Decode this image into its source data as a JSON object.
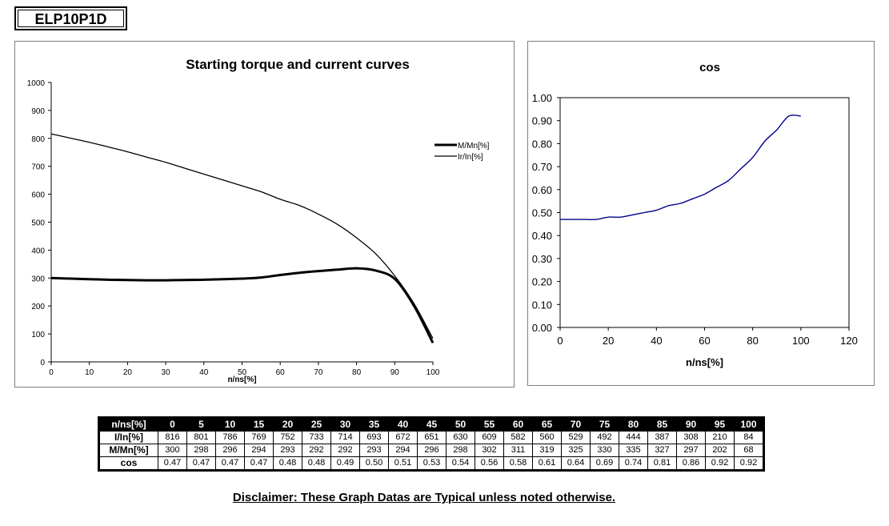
{
  "model": "ELP10P1D",
  "chart_data": [
    {
      "type": "line",
      "title": "Starting torque and current curves",
      "xlabel": "n/ns[%]",
      "ylabel": "",
      "xlim": [
        0,
        100
      ],
      "ylim": [
        0,
        1000
      ],
      "xticks": [
        0,
        10,
        20,
        30,
        40,
        50,
        60,
        70,
        80,
        90,
        100
      ],
      "yticks": [
        0,
        100,
        200,
        300,
        400,
        500,
        600,
        700,
        800,
        900,
        1000
      ],
      "legend_position": "right",
      "x": [
        0,
        5,
        10,
        15,
        20,
        25,
        30,
        35,
        40,
        45,
        50,
        55,
        60,
        65,
        70,
        75,
        80,
        85,
        90,
        95,
        100
      ],
      "series": [
        {
          "name": "M/Mn[%]",
          "color": "#000000",
          "width": "thick",
          "values": [
            300,
            298,
            296,
            294,
            293,
            292,
            292,
            293,
            294,
            296,
            298,
            302,
            311,
            319,
            325,
            330,
            335,
            327,
            297,
            202,
            68
          ]
        },
        {
          "name": "Ir/In[%]",
          "color": "#000000",
          "width": "thin",
          "values": [
            816,
            801,
            786,
            769,
            752,
            733,
            714,
            693,
            672,
            651,
            630,
            609,
            582,
            560,
            529,
            492,
            444,
            387,
            308,
            210,
            84
          ]
        }
      ]
    },
    {
      "type": "line",
      "title": "cos",
      "xlabel": "n/ns[%]",
      "ylabel": "",
      "xlim": [
        0,
        120
      ],
      "ylim": [
        0,
        1
      ],
      "xticks": [
        0,
        20,
        40,
        60,
        80,
        100,
        120
      ],
      "yticks": [
        "0.00",
        "0.10",
        "0.20",
        "0.30",
        "0.40",
        "0.50",
        "0.60",
        "0.70",
        "0.80",
        "0.90",
        "1.00"
      ],
      "x": [
        0,
        5,
        10,
        15,
        20,
        25,
        30,
        35,
        40,
        45,
        50,
        55,
        60,
        65,
        70,
        75,
        80,
        85,
        90,
        95,
        100
      ],
      "series": [
        {
          "name": "cos",
          "color": "#00008b",
          "values": [
            0.47,
            0.47,
            0.47,
            0.47,
            0.48,
            0.48,
            0.49,
            0.5,
            0.51,
            0.53,
            0.54,
            0.56,
            0.58,
            0.61,
            0.64,
            0.69,
            0.74,
            0.81,
            0.86,
            0.92,
            0.92
          ]
        }
      ]
    }
  ],
  "table": {
    "header_label": "n/ns[%]",
    "columns": [
      "0",
      "5",
      "10",
      "15",
      "20",
      "25",
      "30",
      "35",
      "40",
      "45",
      "50",
      "55",
      "60",
      "65",
      "70",
      "75",
      "80",
      "85",
      "90",
      "95",
      "100"
    ],
    "rows": [
      {
        "label": "I/In[%]",
        "values": [
          "816",
          "801",
          "786",
          "769",
          "752",
          "733",
          "714",
          "693",
          "672",
          "651",
          "630",
          "609",
          "582",
          "560",
          "529",
          "492",
          "444",
          "387",
          "308",
          "210",
          "84"
        ]
      },
      {
        "label": "M/Mn[%]",
        "values": [
          "300",
          "298",
          "296",
          "294",
          "293",
          "292",
          "292",
          "293",
          "294",
          "296",
          "298",
          "302",
          "311",
          "319",
          "325",
          "330",
          "335",
          "327",
          "297",
          "202",
          "68"
        ]
      },
      {
        "label": "cos",
        "values": [
          "0.47",
          "0.47",
          "0.47",
          "0.47",
          "0.48",
          "0.48",
          "0.49",
          "0.50",
          "0.51",
          "0.53",
          "0.54",
          "0.56",
          "0.58",
          "0.61",
          "0.64",
          "0.69",
          "0.74",
          "0.81",
          "0.86",
          "0.92",
          "0.92"
        ]
      }
    ]
  },
  "disclaimer": "Disclaimer: These Graph Datas are Typical unless noted otherwise."
}
